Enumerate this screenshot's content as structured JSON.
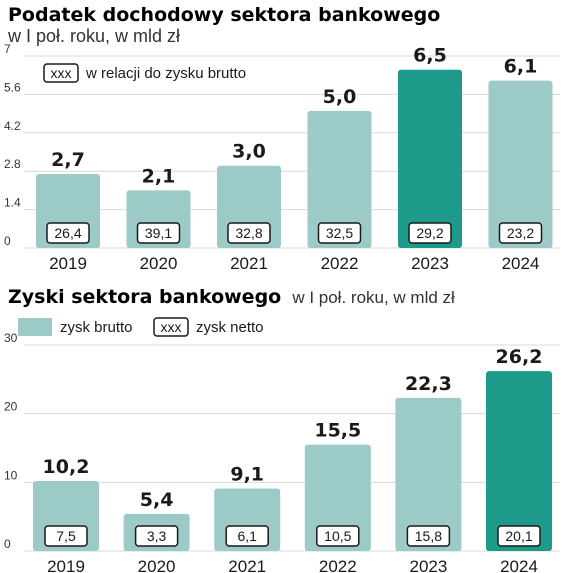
{
  "chart_data": [
    {
      "type": "bar",
      "title": "Podatek dochodowy sektora bankowego",
      "subtitle": "w I poł. roku, w mld zł",
      "legend_box_label": "xxx",
      "legend_box_text": "w relacji do zysku brutto",
      "categories": [
        "2019",
        "2020",
        "2021",
        "2022",
        "2023",
        "2024"
      ],
      "values": [
        2.7,
        2.1,
        3.0,
        5.0,
        6.5,
        6.1
      ],
      "value_labels": [
        "2,7",
        "2,1",
        "3,0",
        "5,0",
        "6,5",
        "6,1"
      ],
      "box_values": [
        "26,4",
        "39,1",
        "32,8",
        "32,5",
        "29,2",
        "23,2"
      ],
      "highlight_index": 4,
      "ylim": [
        0,
        7
      ],
      "yticks": [
        "0",
        "1.4",
        "2.8",
        "4.2",
        "5.6",
        "7"
      ],
      "ytick_values": [
        0,
        1.4,
        2.8,
        4.2,
        5.6,
        7
      ],
      "grid": true,
      "colors": {
        "bar": "#9ccbc7",
        "highlight": "#1e9a8b",
        "grid": "#d9d9d9"
      }
    },
    {
      "type": "bar",
      "title": "Zyski sektora bankowego",
      "subtitle": "w I poł. roku, w mld zł",
      "legend": [
        {
          "kind": "swatch",
          "label": "zysk brutto"
        },
        {
          "kind": "box",
          "box_label": "xxx",
          "label": "zysk netto"
        }
      ],
      "categories": [
        "2019",
        "2020",
        "2021",
        "2022",
        "2023",
        "2024"
      ],
      "series": [
        {
          "name": "zysk brutto",
          "values": [
            10.2,
            5.4,
            9.1,
            15.5,
            22.3,
            26.2
          ],
          "labels": [
            "10,2",
            "5,4",
            "9,1",
            "15,5",
            "22,3",
            "26,2"
          ]
        },
        {
          "name": "zysk netto",
          "values": [
            7.5,
            3.3,
            6.1,
            10.5,
            15.8,
            20.1
          ],
          "labels": [
            "7,5",
            "3,3",
            "6,1",
            "10,5",
            "15,8",
            "20,1"
          ]
        }
      ],
      "highlight_index": 5,
      "ylim": [
        0,
        30
      ],
      "yticks": [
        "0",
        "10",
        "20",
        "30"
      ],
      "ytick_values": [
        0,
        10,
        20,
        30
      ],
      "grid": true,
      "colors": {
        "bar": "#9ccbc7",
        "highlight": "#1e9a8b",
        "grid": "#d9d9d9"
      }
    }
  ]
}
